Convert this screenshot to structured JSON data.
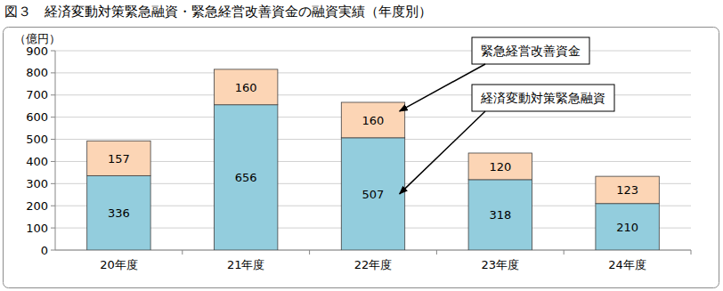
{
  "chart_data": {
    "type": "bar",
    "title": "図３　経済変動対策緊急融資・緊急経営改善資金の融資実績（年度別）",
    "y_label": "（億円）",
    "categories": [
      "20年度",
      "21年度",
      "22年度",
      "23年度",
      "24年度"
    ],
    "series": [
      {
        "name": "経済変動対策緊急融資",
        "color": "#93cddd",
        "values": [
          336,
          656,
          507,
          318,
          210
        ]
      },
      {
        "name": "緊急経営改善資金",
        "color": "#fcd5b5",
        "values": [
          157,
          160,
          160,
          120,
          123
        ]
      }
    ],
    "stacked": true,
    "data_labels": true,
    "grid": true,
    "ylim": [
      0,
      900
    ],
    "yticks": [
      0,
      100,
      200,
      300,
      400,
      500,
      600,
      700,
      800,
      900
    ]
  }
}
